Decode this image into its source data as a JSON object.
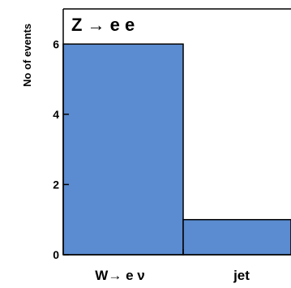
{
  "chart_data": {
    "type": "bar",
    "title": "Z → e e",
    "ylabel": "No of events",
    "xlabel": "",
    "categories": [
      "W→ e ν",
      "jet"
    ],
    "values": [
      6,
      1
    ],
    "ylim": [
      0,
      7
    ],
    "yticks": [
      0,
      2,
      4,
      6
    ],
    "bar_color": "#5b8bd0",
    "grid": false,
    "legend": "none"
  }
}
